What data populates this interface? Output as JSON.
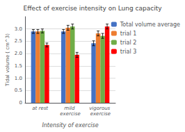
{
  "chart_data": {
    "type": "bar",
    "title": "Effect of exercise intensity on Lung capacity",
    "xlabel": "Intensity of exercise",
    "ylabel": "Tidal volume ( cm^3)",
    "categories": [
      "at rest",
      "mild exercise",
      "vigorous exercise"
    ],
    "series": [
      {
        "name": "Total volume average",
        "color": "#4472C4",
        "values": [
          2.9,
          2.9,
          2.42
        ],
        "errors": [
          0.08,
          0.08,
          0.1
        ]
      },
      {
        "name": "trial 1",
        "color": "#ED7D31",
        "values": [
          2.9,
          3.05,
          2.82
        ],
        "errors": [
          0.08,
          0.1,
          0.1
        ]
      },
      {
        "name": "trial 2",
        "color": "#70AD47",
        "values": [
          2.92,
          3.1,
          2.72
        ],
        "errors": [
          0.08,
          0.1,
          0.1
        ]
      },
      {
        "name": "trial 3",
        "color": "#FF0000",
        "values": [
          2.35,
          1.95,
          3.1
        ],
        "errors": [
          0.08,
          0.1,
          0.1
        ]
      }
    ],
    "ylim": [
      0,
      3.5
    ],
    "yticks": [
      0,
      0.5,
      {
        "value": 1.0,
        "label": "1.0"
      },
      1.5,
      {
        "value": 2.0,
        "label": "2.0"
      },
      2.5,
      {
        "value": 3.0,
        "label": "3.0"
      }
    ],
    "grid": true,
    "legend": "right"
  }
}
